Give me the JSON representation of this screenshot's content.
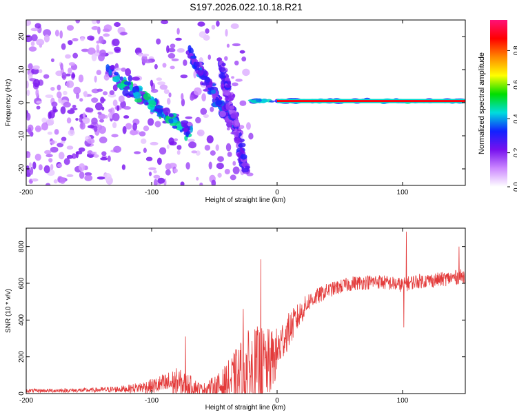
{
  "title": "S197.2026.022.10.18.R21",
  "colors": {
    "snr_line": "#e33a3a",
    "bg": "#ffffff",
    "axis": "#000000"
  },
  "chart_data": [
    {
      "type": "heatmap",
      "name": "spectrogram",
      "xlabel": "Height of straight line (km)",
      "ylabel": "Frequency (Hz)",
      "xlim": [
        -200,
        150
      ],
      "ylim": [
        -25,
        25
      ],
      "x_ticks": [
        "-200",
        "-100",
        "0",
        "100"
      ],
      "x_tick_values": [
        -200,
        -100,
        0,
        100
      ],
      "y_ticks": [
        "20",
        "10",
        "0",
        "-10",
        "-20"
      ],
      "y_tick_values": [
        20,
        10,
        0,
        -10,
        -20
      ],
      "colorbar": {
        "label": "Normalized spectral amplitude",
        "range": [
          0.0,
          0.98
        ],
        "ticks": [
          "0.0",
          "0.2",
          "0.4",
          "0.6",
          "0.8"
        ],
        "tick_values": [
          0.0,
          0.2,
          0.4,
          0.6,
          0.8
        ],
        "stops": [
          "#ffffff",
          "#cc88ff",
          "#7711ee",
          "#1122ff",
          "#00dddd",
          "#00dd00",
          "#ffff00",
          "#ff8800",
          "#ff0000",
          "#ff1177"
        ]
      },
      "features": [
        {
          "name": "scatter-noise",
          "x_range": [
            -200,
            -20
          ],
          "freq_range": [
            -25,
            25
          ],
          "amplitude": 0.15
        },
        {
          "name": "descending-band-1",
          "x_start": -135,
          "x_end": -70,
          "freq_start": 10,
          "freq_end": -9,
          "amplitude": 0.4
        },
        {
          "name": "descending-band-2",
          "x_start": -70,
          "x_end": -30,
          "freq_start": 15,
          "freq_end": -10,
          "amplitude": 0.3
        },
        {
          "name": "descending-band-3",
          "x_start": -45,
          "x_end": -25,
          "freq_start": 12,
          "freq_end": -20,
          "amplitude": 0.25
        },
        {
          "name": "carrier-line",
          "x_start": -20,
          "x_end": 150,
          "freq": 0.5,
          "amplitude": 0.9
        }
      ]
    },
    {
      "type": "line",
      "name": "snr",
      "xlabel": "Height of straight line (km)",
      "ylabel": "SNR (10 * v/v)",
      "xlim": [
        -200,
        150
      ],
      "ylim": [
        0,
        900
      ],
      "x_ticks": [
        "-200",
        "-100",
        "0",
        "100"
      ],
      "x_tick_values": [
        -200,
        -100,
        0,
        100
      ],
      "y_ticks": [
        "0",
        "200",
        "400",
        "600",
        "800"
      ],
      "y_tick_values": [
        0,
        200,
        400,
        600,
        800
      ],
      "envelope": {
        "x": [
          -200,
          -150,
          -120,
          -100,
          -80,
          -70,
          -60,
          -45,
          -35,
          -25,
          -15,
          -5,
          0,
          5,
          15,
          25,
          40,
          60,
          80,
          90,
          100,
          110,
          130,
          150
        ],
        "base": [
          15,
          18,
          25,
          40,
          60,
          45,
          25,
          40,
          70,
          110,
          120,
          170,
          220,
          300,
          400,
          500,
          560,
          600,
          610,
          600,
          590,
          610,
          620,
          640
        ],
        "amp": [
          10,
          12,
          20,
          40,
          80,
          60,
          25,
          80,
          150,
          230,
          250,
          180,
          140,
          110,
          80,
          50,
          40,
          40,
          40,
          40,
          40,
          40,
          40,
          40
        ]
      },
      "spikes": [
        {
          "x": -73,
          "y": 310
        },
        {
          "x": -27,
          "y": 460
        },
        {
          "x": -13,
          "y": 730
        },
        {
          "x": 101,
          "y": 360
        },
        {
          "x": 103,
          "y": 880
        },
        {
          "x": 145,
          "y": 800
        }
      ]
    }
  ]
}
